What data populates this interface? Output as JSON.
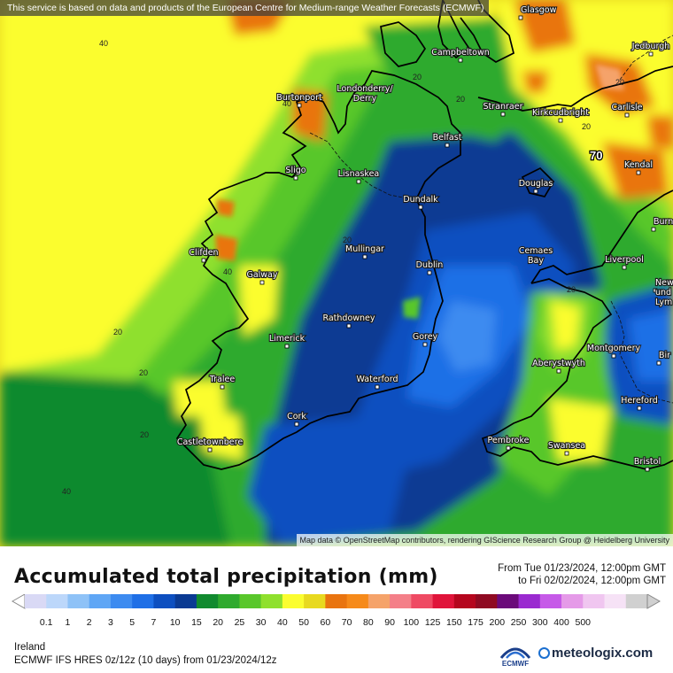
{
  "notice": "This service is based on data and products of the European Centre for Medium-range Weather Forecasts (ECMWF)",
  "map_attribution": "Map data © OpenStreetMap contributors, rendering GIScience Research Group @ Heidelberg University",
  "title": "Accumulated total precipitation (mm)",
  "valid_from": "From Tue 01/23/2024, 12:00pm GMT",
  "valid_to": "to Fri 02/02/2024, 12:00pm GMT",
  "region": "Ireland",
  "model_info": "ECMWF IFS HRES 0z/12z (10 days)  from  01/23/2024/12z",
  "brand": "meteologix.com",
  "ecmwf_logo_text": "ECMWF",
  "max_value": "70",
  "legend": {
    "ticks": [
      "0.1",
      "1",
      "2",
      "3",
      "5",
      "7",
      "10",
      "15",
      "20",
      "25",
      "30",
      "40",
      "50",
      "60",
      "70",
      "80",
      "90",
      "100",
      "125",
      "150",
      "175",
      "200",
      "250",
      "300",
      "400",
      "500"
    ],
    "colors": [
      "#d9d9f5",
      "#bcd7fa",
      "#8ec2f7",
      "#5fa6f5",
      "#3d8bf0",
      "#1f6fe6",
      "#0d4fc0",
      "#0a3a93",
      "#118a2f",
      "#2faa2e",
      "#59c72b",
      "#8fe02d",
      "#fbfd2f",
      "#e8d91f",
      "#e9740f",
      "#f68a1a",
      "#f5a36a",
      "#f47f88",
      "#ef4a63",
      "#e0143a",
      "#b5061e",
      "#8f0a22",
      "#6b0a7a",
      "#9a2ad0",
      "#c65ae8",
      "#e59ae8",
      "#f0c6f0",
      "#f6e2f6",
      "#d0d0d0"
    ]
  },
  "cities": [
    {
      "name": "Glasgow"
    },
    {
      "name": "Campbeltown"
    },
    {
      "name": "Jedburgh"
    },
    {
      "name": "Burtonport"
    },
    {
      "name": "Londonderry/\nDerry"
    },
    {
      "name": "Stranraer"
    },
    {
      "name": "Kirkcudbright"
    },
    {
      "name": "Carlisle"
    },
    {
      "name": "Belfast"
    },
    {
      "name": "Sligo"
    },
    {
      "name": "Lisnaskea"
    },
    {
      "name": "Kendal"
    },
    {
      "name": "Douglas"
    },
    {
      "name": "Dundalk"
    },
    {
      "name": "Clifden"
    },
    {
      "name": "Mullingar"
    },
    {
      "name": "Cemaes\nBay"
    },
    {
      "name": "Liverpool"
    },
    {
      "name": "Dublin"
    },
    {
      "name": "Galway"
    },
    {
      "name": "Newca\nund\nLym"
    },
    {
      "name": "Rathdowney"
    },
    {
      "name": "Limerick"
    },
    {
      "name": "Gorey"
    },
    {
      "name": "Montgomery"
    },
    {
      "name": "Aberystwyth"
    },
    {
      "name": "Tralee"
    },
    {
      "name": "Waterford"
    },
    {
      "name": "Hereford"
    },
    {
      "name": "Cork"
    },
    {
      "name": "Castletownbere"
    },
    {
      "name": "Pembroke"
    },
    {
      "name": "Swansea"
    },
    {
      "name": "Bristol"
    },
    {
      "name": "Burn"
    },
    {
      "name": "Bir"
    }
  ],
  "contour_labels": [
    "40",
    "40",
    "20",
    "20",
    "20",
    "40",
    "20",
    "40",
    "20",
    "20",
    "20",
    "20",
    "20"
  ]
}
